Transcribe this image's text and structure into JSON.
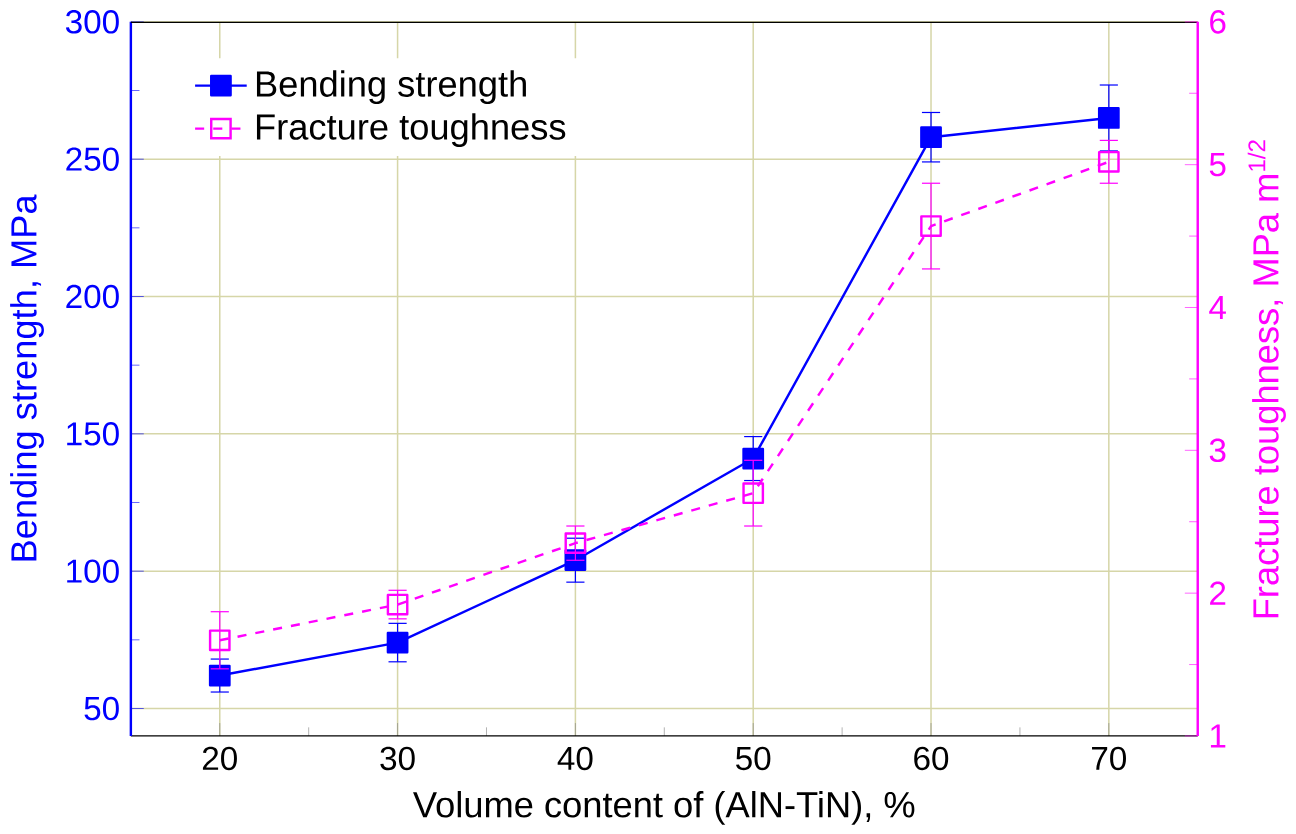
{
  "chart_data": {
    "type": "line",
    "xlabel": "Volume content of (AlN-TiN), %",
    "ylabel": "Bending strength, MPa",
    "y2label": "Fracture toughness, MPa m$^{1/2}$",
    "x": [
      20,
      30,
      40,
      50,
      60,
      70
    ],
    "series": [
      {
        "name": "Bending strength",
        "color": "#0000ff",
        "values": [
          62,
          74,
          104,
          141,
          258,
          265
        ],
        "errors": [
          6,
          7,
          8,
          8,
          9,
          12
        ],
        "marker": "square",
        "line_style": "solid"
      },
      {
        "name": "Fracture toughness",
        "color": "#ff00ff",
        "values": [
          1.67,
          1.92,
          2.35,
          2.7,
          4.57,
          5.02
        ],
        "errors": [
          0.2,
          0.1,
          0.12,
          0.23,
          0.3,
          0.15
        ],
        "marker": "square",
        "line_style": "dashed",
        "axis": "y2"
      }
    ],
    "xlim": [
      15,
      75
    ],
    "xticks": [
      20,
      30,
      40,
      50,
      60,
      70
    ],
    "ylim": [
      40,
      300
    ],
    "yticks": [
      50,
      100,
      150,
      200,
      250,
      300
    ],
    "y2lim": [
      1,
      6
    ],
    "y2ticks": [
      1,
      2,
      3,
      4,
      5,
      6
    ],
    "grid": true,
    "legend": "top left"
  }
}
